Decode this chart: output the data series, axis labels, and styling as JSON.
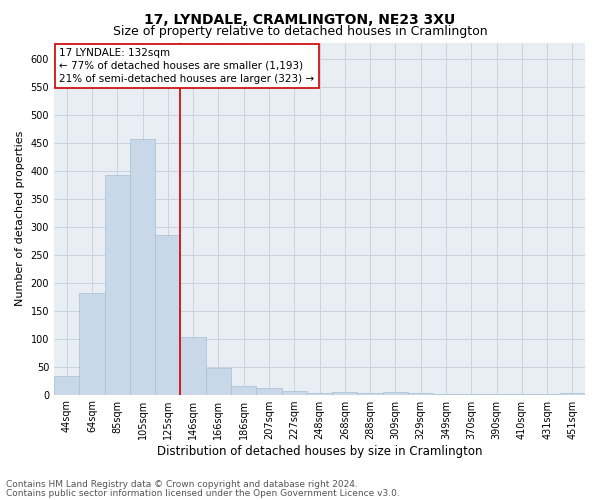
{
  "title": "17, LYNDALE, CRAMLINGTON, NE23 3XU",
  "subtitle": "Size of property relative to detached houses in Cramlington",
  "xlabel": "Distribution of detached houses by size in Cramlington",
  "ylabel": "Number of detached properties",
  "categories": [
    "44sqm",
    "64sqm",
    "85sqm",
    "105sqm",
    "125sqm",
    "146sqm",
    "166sqm",
    "186sqm",
    "207sqm",
    "227sqm",
    "248sqm",
    "268sqm",
    "288sqm",
    "309sqm",
    "329sqm",
    "349sqm",
    "370sqm",
    "390sqm",
    "410sqm",
    "431sqm",
    "451sqm"
  ],
  "values": [
    33,
    181,
    393,
    457,
    286,
    103,
    48,
    15,
    12,
    7,
    2,
    5,
    2,
    4,
    2,
    1,
    1,
    1,
    1,
    1,
    2
  ],
  "bar_color": "#c8d8e8",
  "bar_edge_color": "#a8bfd0",
  "vline_color": "#cc0000",
  "annotation_title": "17 LYNDALE: 132sqm",
  "annotation_line1": "← 77% of detached houses are smaller (1,193)",
  "annotation_line2": "21% of semi-detached houses are larger (323) →",
  "annotation_box_color": "#ffffff",
  "annotation_box_edge": "#cc0000",
  "ylim": [
    0,
    630
  ],
  "yticks": [
    0,
    50,
    100,
    150,
    200,
    250,
    300,
    350,
    400,
    450,
    500,
    550,
    600
  ],
  "grid_color": "#c8d4de",
  "bg_color": "#e8eef4",
  "footer1": "Contains HM Land Registry data © Crown copyright and database right 2024.",
  "footer2": "Contains public sector information licensed under the Open Government Licence v3.0.",
  "title_fontsize": 10,
  "subtitle_fontsize": 9,
  "tick_fontsize": 7,
  "ylabel_fontsize": 8,
  "xlabel_fontsize": 8.5,
  "annotation_fontsize": 7.5,
  "footer_fontsize": 6.5
}
